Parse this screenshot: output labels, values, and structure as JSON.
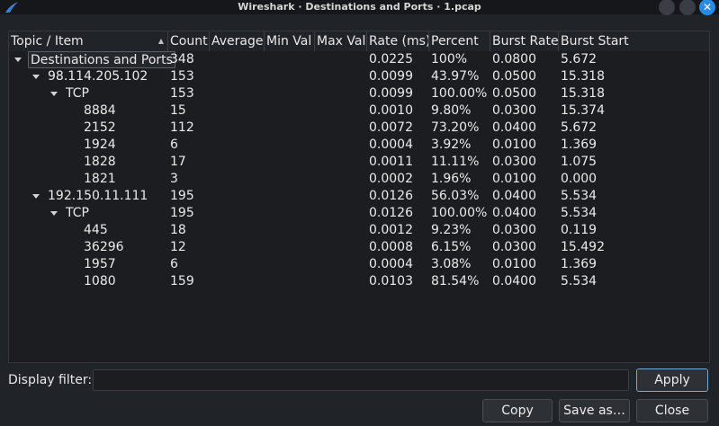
{
  "window": {
    "title": "Wireshark · Destinations and Ports · 1.pcap",
    "close_glyph": "✕"
  },
  "table": {
    "columns": [
      "Topic / Item",
      "Count",
      "Average",
      "Min Val",
      "Max Val",
      "Rate (ms)",
      "Percent",
      "Burst Rate",
      "Burst Start"
    ],
    "sort_indicator": "▲",
    "rows": [
      {
        "level": 0,
        "expanded": true,
        "item": "Destinations and Ports",
        "count": "348",
        "average": "",
        "min": "",
        "max": "",
        "rate": "0.0225",
        "percent": "100%",
        "burst_rate": "0.0800",
        "burst_start": "5.672"
      },
      {
        "level": 1,
        "expanded": true,
        "item": "98.114.205.102",
        "count": "153",
        "average": "",
        "min": "",
        "max": "",
        "rate": "0.0099",
        "percent": "43.97%",
        "burst_rate": "0.0500",
        "burst_start": "15.318"
      },
      {
        "level": 2,
        "expanded": true,
        "item": "TCP",
        "count": "153",
        "average": "",
        "min": "",
        "max": "",
        "rate": "0.0099",
        "percent": "100.00%",
        "burst_rate": "0.0500",
        "burst_start": "15.318"
      },
      {
        "level": 3,
        "item": "8884",
        "count": "15",
        "average": "",
        "min": "",
        "max": "",
        "rate": "0.0010",
        "percent": "9.80%",
        "burst_rate": "0.0300",
        "burst_start": "15.374"
      },
      {
        "level": 3,
        "item": "2152",
        "count": "112",
        "average": "",
        "min": "",
        "max": "",
        "rate": "0.0072",
        "percent": "73.20%",
        "burst_rate": "0.0400",
        "burst_start": "5.672"
      },
      {
        "level": 3,
        "item": "1924",
        "count": "6",
        "average": "",
        "min": "",
        "max": "",
        "rate": "0.0004",
        "percent": "3.92%",
        "burst_rate": "0.0100",
        "burst_start": "1.369"
      },
      {
        "level": 3,
        "item": "1828",
        "count": "17",
        "average": "",
        "min": "",
        "max": "",
        "rate": "0.0011",
        "percent": "11.11%",
        "burst_rate": "0.0300",
        "burst_start": "1.075"
      },
      {
        "level": 3,
        "item": "1821",
        "count": "3",
        "average": "",
        "min": "",
        "max": "",
        "rate": "0.0002",
        "percent": "1.96%",
        "burst_rate": "0.0100",
        "burst_start": "0.000"
      },
      {
        "level": 1,
        "expanded": true,
        "item": "192.150.11.111",
        "count": "195",
        "average": "",
        "min": "",
        "max": "",
        "rate": "0.0126",
        "percent": "56.03%",
        "burst_rate": "0.0400",
        "burst_start": "5.534"
      },
      {
        "level": 2,
        "expanded": true,
        "item": "TCP",
        "count": "195",
        "average": "",
        "min": "",
        "max": "",
        "rate": "0.0126",
        "percent": "100.00%",
        "burst_rate": "0.0400",
        "burst_start": "5.534"
      },
      {
        "level": 3,
        "item": "445",
        "count": "18",
        "average": "",
        "min": "",
        "max": "",
        "rate": "0.0012",
        "percent": "9.23%",
        "burst_rate": "0.0300",
        "burst_start": "0.119"
      },
      {
        "level": 3,
        "item": "36296",
        "count": "12",
        "average": "",
        "min": "",
        "max": "",
        "rate": "0.0008",
        "percent": "6.15%",
        "burst_rate": "0.0300",
        "burst_start": "15.492"
      },
      {
        "level": 3,
        "item": "1957",
        "count": "6",
        "average": "",
        "min": "",
        "max": "",
        "rate": "0.0004",
        "percent": "3.08%",
        "burst_rate": "0.0100",
        "burst_start": "1.369"
      },
      {
        "level": 3,
        "item": "1080",
        "count": "159",
        "average": "",
        "min": "",
        "max": "",
        "rate": "0.0103",
        "percent": "81.54%",
        "burst_rate": "0.0400",
        "burst_start": "5.534"
      }
    ]
  },
  "filter": {
    "label": "Display filter:",
    "value": "",
    "apply_label": "Apply"
  },
  "buttons": {
    "copy_label": "Copy",
    "save_as_label": "Save as…",
    "close_label": "Close"
  }
}
